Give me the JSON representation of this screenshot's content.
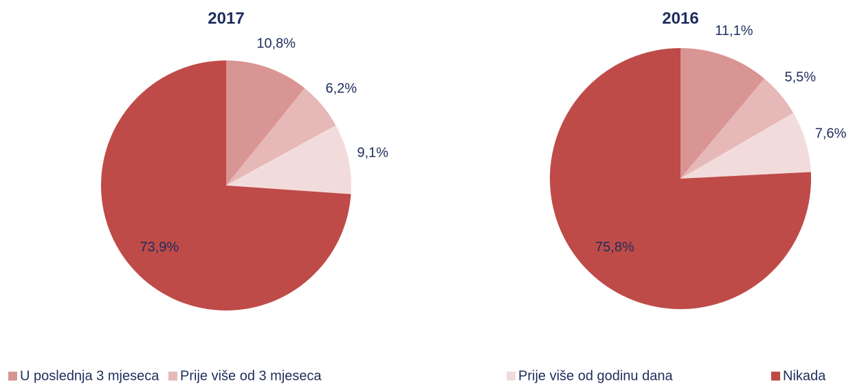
{
  "chart_data": [
    {
      "type": "pie",
      "title": "2017",
      "categories": [
        "U poslednja 3 mjeseca",
        "Prije više od 3 mjeseca",
        "Prije više od godinu dana",
        "Nikada"
      ],
      "colors": [
        "#d99593",
        "#e6b8b7",
        "#f2dcdb",
        "#be4b48"
      ],
      "values": [
        10.8,
        6.2,
        9.1,
        73.9
      ],
      "value_labels": [
        "10,8%",
        "6,2%",
        "9,1%",
        "73,9%"
      ]
    },
    {
      "type": "pie",
      "title": "2016",
      "colors": [
        "#d99593",
        "#e6b8b7",
        "#f2dcdb",
        "#be4b48"
      ],
      "values": [
        11.1,
        5.5,
        7.6,
        75.8
      ],
      "value_labels": [
        "11,1%",
        "5,5%",
        "7,6%",
        "75,8%"
      ]
    }
  ]
}
